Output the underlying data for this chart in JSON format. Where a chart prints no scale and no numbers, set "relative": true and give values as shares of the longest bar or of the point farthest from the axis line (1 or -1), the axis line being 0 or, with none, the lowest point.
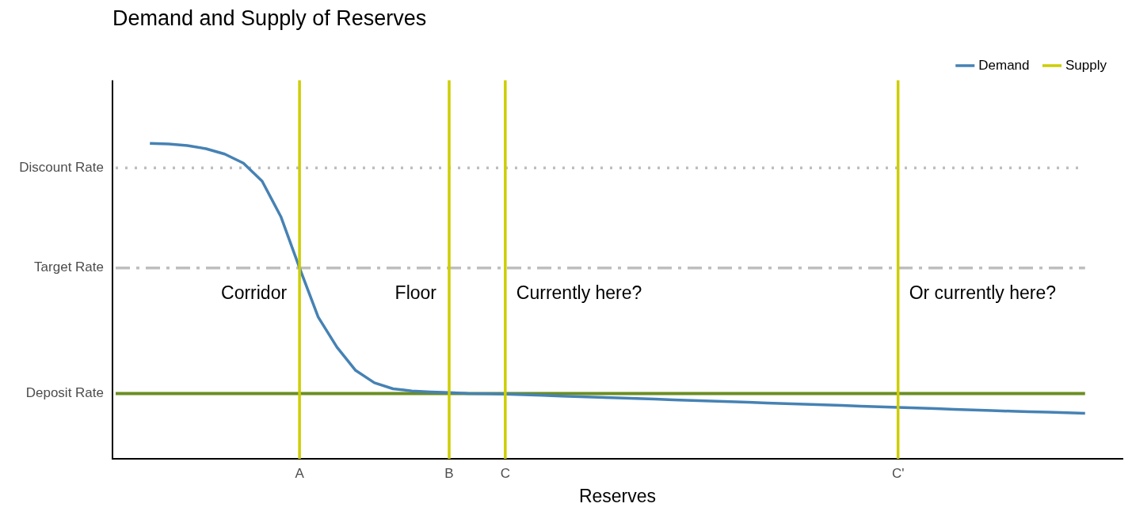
{
  "chart_data": {
    "type": "line",
    "title": "Demand and Supply of Reserves",
    "xlabel": "Reserves",
    "relative": true,
    "legend": "top right",
    "categories": [
      null,
      null,
      null,
      null,
      null,
      null,
      null,
      null,
      null,
      null,
      "A",
      null,
      null,
      null,
      null,
      null,
      null,
      null,
      "B",
      null,
      null,
      "C",
      null,
      null,
      null,
      null,
      null,
      null,
      null,
      null,
      null,
      null,
      null,
      null,
      null,
      null,
      null,
      null,
      null,
      null,
      null,
      null,
      "C'",
      null,
      null,
      null,
      null,
      null,
      null,
      null,
      null,
      null,
      null,
      null,
      null
    ],
    "series": [
      {
        "name": "Demand",
        "color": "#4682b4",
        "values": [
          null,
          null,
          1,
          0.998,
          0.993,
          0.983,
          0.966,
          0.937,
          0.88,
          0.768,
          0.605,
          0.449,
          0.354,
          0.28,
          0.241,
          0.222,
          0.215,
          0.212,
          0.21,
          0.207,
          0.206,
          0.205,
          0.203,
          0.201,
          0.199,
          0.197,
          0.195,
          0.193,
          0.191,
          0.189,
          0.187,
          0.185,
          0.183,
          0.181,
          0.179,
          0.177,
          0.175,
          0.173,
          0.171,
          0.169,
          0.167,
          0.165,
          0.163,
          0.161,
          0.159,
          0.157,
          0.155,
          0.153,
          0.151,
          0.149,
          0.148,
          0.146,
          0.144,
          null,
          null
        ]
      }
    ],
    "ref_lines": [
      {
        "axis": "y",
        "value": 0.922,
        "label": "Discount Rate",
        "color": "#bebebe",
        "line_style": "dotted"
      },
      {
        "axis": "y",
        "value": 0.605,
        "label": "Target Rate",
        "color": "#bebebe",
        "line_style": "dashed"
      },
      {
        "axis": "y",
        "value": 0.207,
        "label": "Deposit Rate",
        "color": "#6b8e23",
        "line_style": "solid"
      },
      {
        "axis": "x",
        "value": "A",
        "label": "Supply",
        "color": "#cdcd00"
      },
      {
        "axis": "x",
        "value": "B",
        "color": "#cdcd00"
      },
      {
        "axis": "x",
        "value": "C",
        "color": "#cdcd00"
      },
      {
        "axis": "x",
        "value": "C'",
        "color": "#cdcd00"
      }
    ],
    "annotations": [
      "Corridor",
      "Floor",
      "Currently here?",
      "Or currently here?"
    ]
  }
}
